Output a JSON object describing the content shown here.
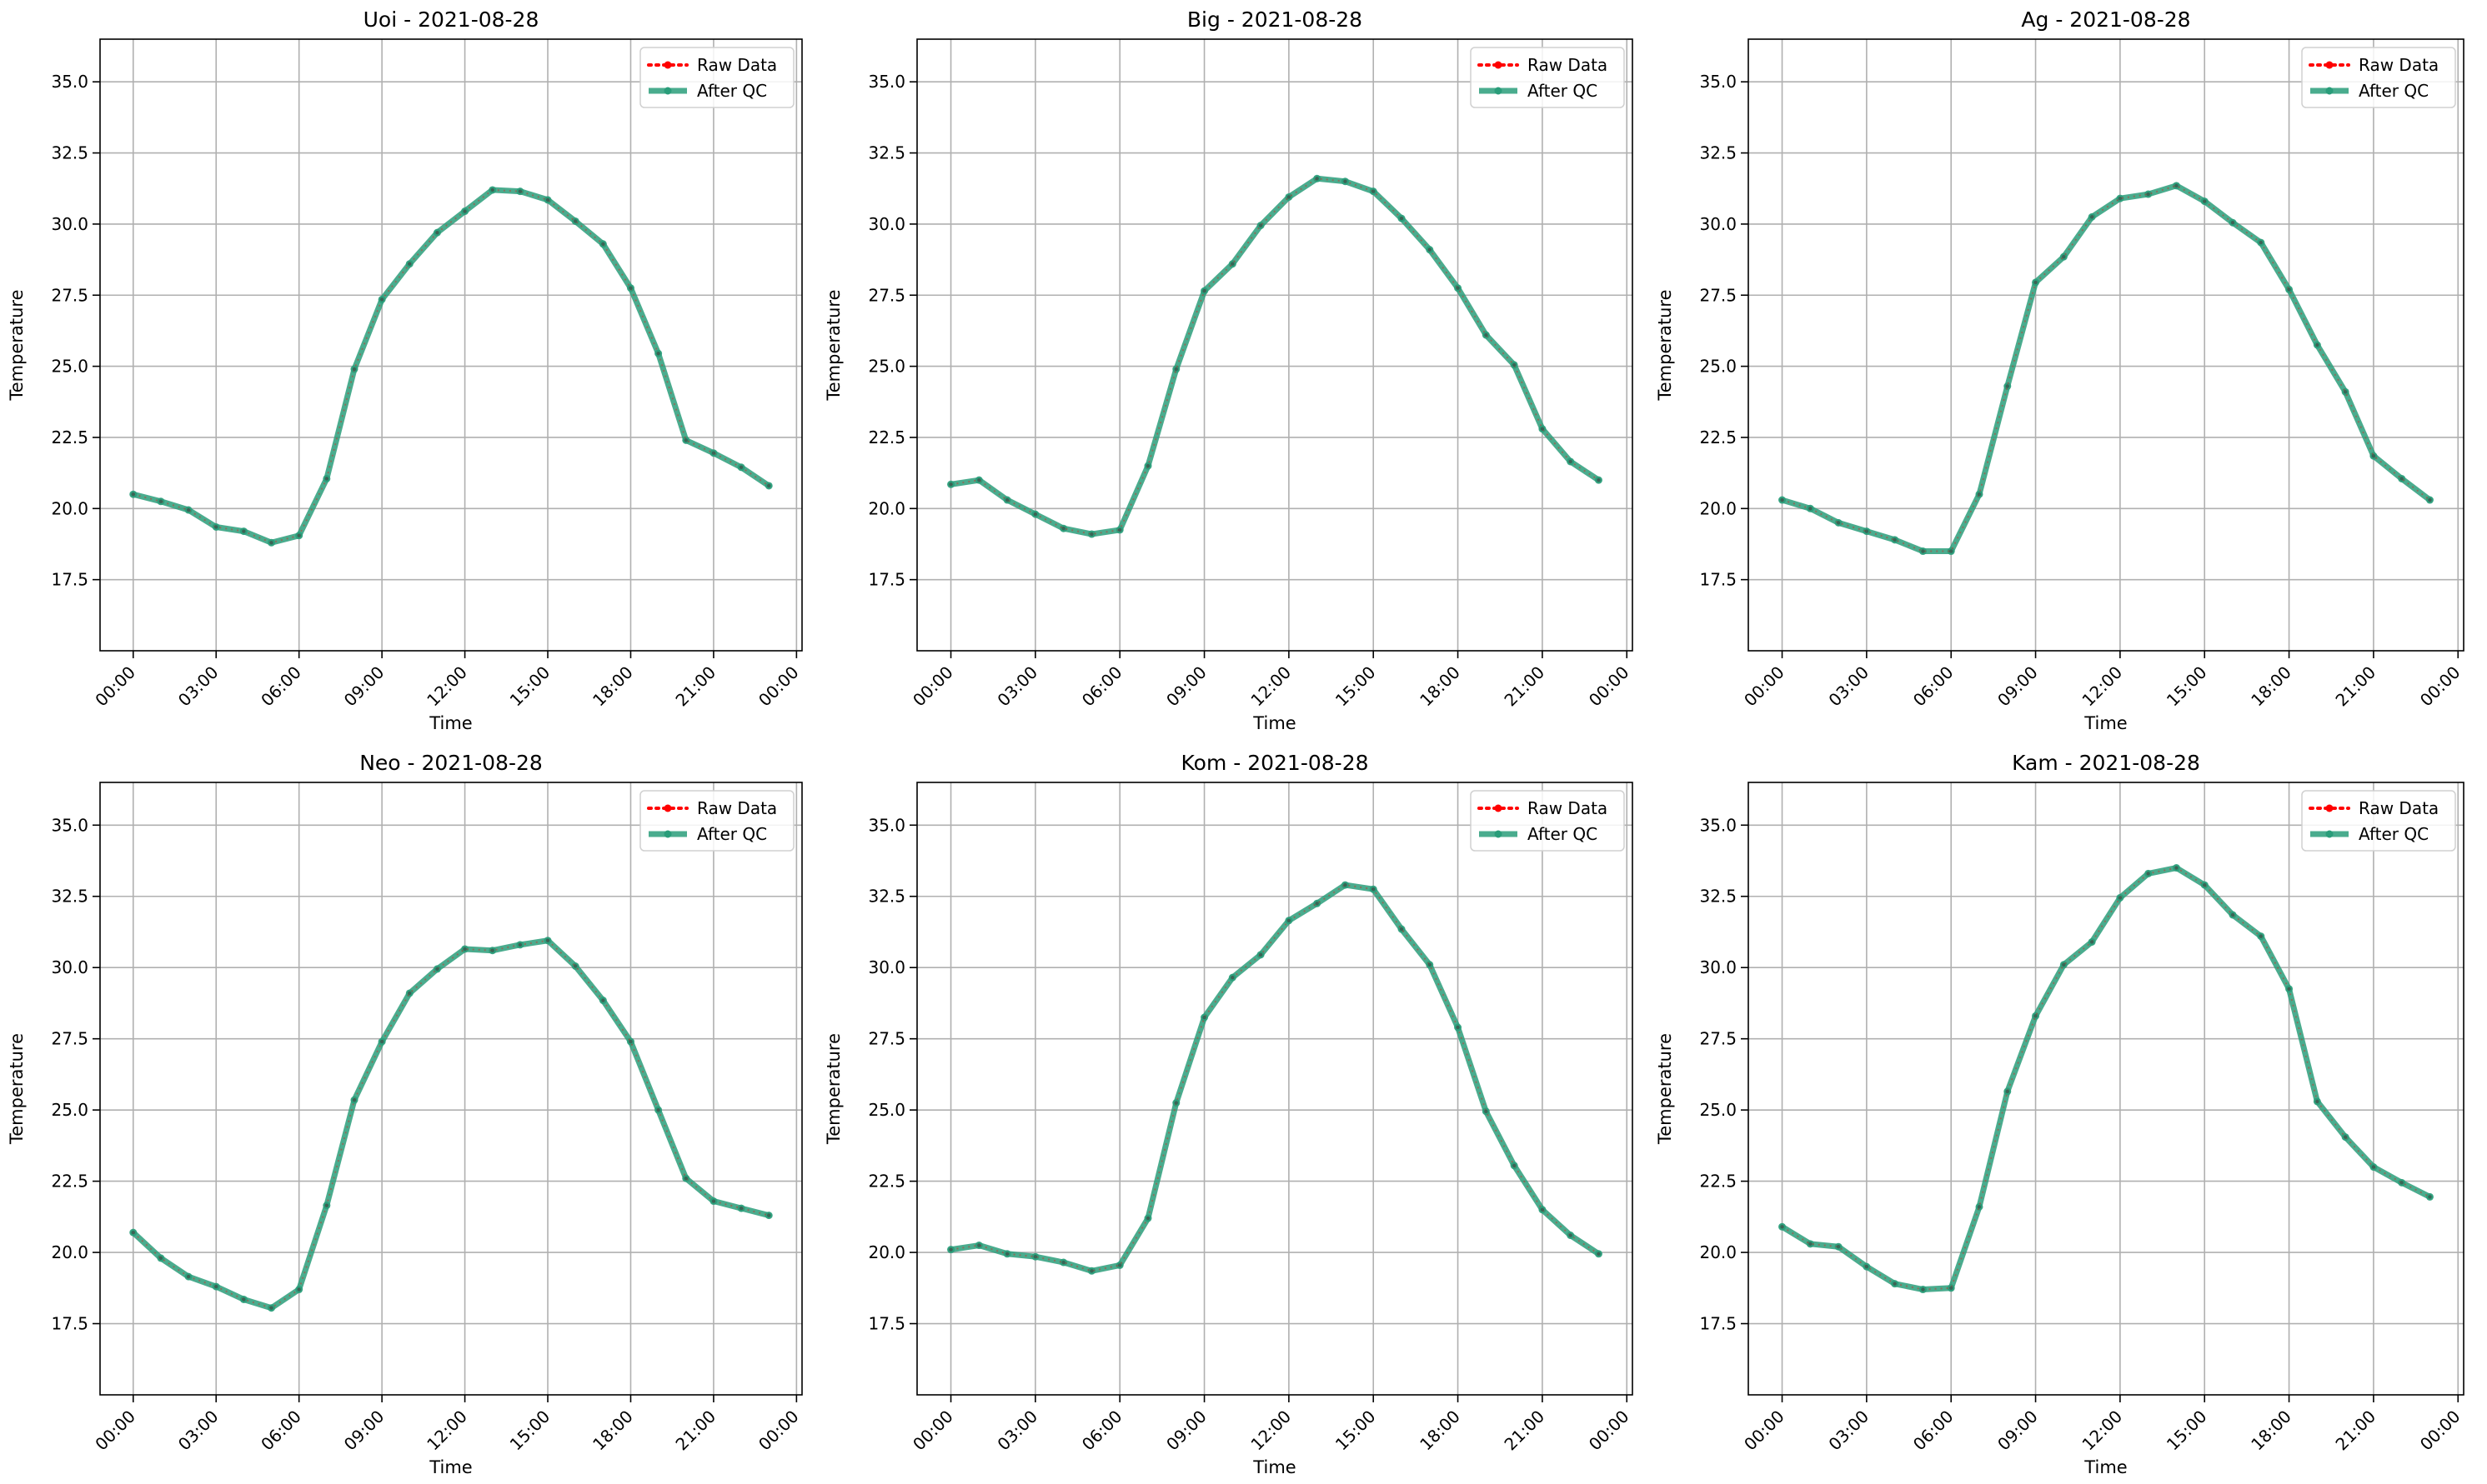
{
  "legend": {
    "raw_label": "Raw Data",
    "qc_label": "After QC"
  },
  "colors": {
    "raw": "#ff0000",
    "qc": "#2a9d7a",
    "grid": "#b0b0b0",
    "axes": "#000000"
  },
  "chart_data": [
    {
      "type": "line",
      "title": "Uoi - 2021-08-28",
      "xlabel": "Time",
      "ylabel": "Temperature",
      "xlim": [
        "2021-08-27 22:48",
        "2021-08-29 00:12"
      ],
      "ylim": [
        15.0,
        36.5
      ],
      "grid": true,
      "legend_position": "top-right",
      "x_ticks": [
        "00:00",
        "03:00",
        "06:00",
        "09:00",
        "12:00",
        "15:00",
        "18:00",
        "21:00",
        "00:00"
      ],
      "y_ticks": [
        "17.5",
        "20.0",
        "22.5",
        "25.0",
        "27.5",
        "30.0",
        "32.5",
        "35.0"
      ],
      "x": [
        "00:00",
        "01:00",
        "02:00",
        "03:00",
        "04:00",
        "05:00",
        "06:00",
        "07:00",
        "08:00",
        "09:00",
        "10:00",
        "11:00",
        "12:00",
        "13:00",
        "14:00",
        "15:00",
        "16:00",
        "17:00",
        "18:00",
        "19:00",
        "20:00",
        "21:00",
        "22:00",
        "23:00"
      ],
      "series": [
        {
          "name": "Raw Data",
          "values": [
            20.5,
            20.25,
            19.95,
            19.35,
            19.2,
            18.8,
            19.05,
            21.05,
            24.9,
            27.35,
            28.6,
            29.7,
            30.45,
            31.2,
            31.15,
            30.85,
            30.1,
            29.3,
            27.75,
            25.45,
            22.4,
            21.95,
            21.45,
            20.8
          ]
        },
        {
          "name": "After QC",
          "values": [
            20.5,
            20.25,
            19.95,
            19.35,
            19.2,
            18.8,
            19.05,
            21.05,
            24.9,
            27.35,
            28.6,
            29.7,
            30.45,
            31.2,
            31.15,
            30.85,
            30.1,
            29.3,
            27.75,
            25.45,
            22.4,
            21.95,
            21.45,
            20.8
          ]
        }
      ]
    },
    {
      "type": "line",
      "title": "Big - 2021-08-28",
      "xlabel": "Time",
      "ylabel": "Temperature",
      "xlim": [
        "2021-08-27 22:48",
        "2021-08-29 00:12"
      ],
      "ylim": [
        15.0,
        36.5
      ],
      "grid": true,
      "legend_position": "top-right",
      "x_ticks": [
        "00:00",
        "03:00",
        "06:00",
        "09:00",
        "12:00",
        "15:00",
        "18:00",
        "21:00",
        "00:00"
      ],
      "y_ticks": [
        "17.5",
        "20.0",
        "22.5",
        "25.0",
        "27.5",
        "30.0",
        "32.5",
        "35.0"
      ],
      "x": [
        "00:00",
        "01:00",
        "02:00",
        "03:00",
        "04:00",
        "05:00",
        "06:00",
        "07:00",
        "08:00",
        "09:00",
        "10:00",
        "11:00",
        "12:00",
        "13:00",
        "14:00",
        "15:00",
        "16:00",
        "17:00",
        "18:00",
        "19:00",
        "20:00",
        "21:00",
        "22:00",
        "23:00"
      ],
      "series": [
        {
          "name": "Raw Data",
          "values": [
            20.85,
            21.0,
            20.3,
            19.8,
            19.3,
            19.1,
            19.25,
            21.5,
            24.9,
            27.65,
            28.6,
            29.95,
            30.95,
            31.6,
            31.5,
            31.15,
            30.2,
            29.1,
            27.75,
            26.1,
            25.05,
            22.8,
            21.65,
            21.0
          ]
        },
        {
          "name": "After QC",
          "values": [
            20.85,
            21.0,
            20.3,
            19.8,
            19.3,
            19.1,
            19.25,
            21.5,
            24.9,
            27.65,
            28.6,
            29.95,
            30.95,
            31.6,
            31.5,
            31.15,
            30.2,
            29.1,
            27.75,
            26.1,
            25.05,
            22.8,
            21.65,
            21.0
          ]
        }
      ]
    },
    {
      "type": "line",
      "title": "Ag - 2021-08-28",
      "xlabel": "Time",
      "ylabel": "Temperature",
      "xlim": [
        "2021-08-27 22:48",
        "2021-08-29 00:12"
      ],
      "ylim": [
        15.0,
        36.5
      ],
      "grid": true,
      "legend_position": "top-right",
      "x_ticks": [
        "00:00",
        "03:00",
        "06:00",
        "09:00",
        "12:00",
        "15:00",
        "18:00",
        "21:00",
        "00:00"
      ],
      "y_ticks": [
        "17.5",
        "20.0",
        "22.5",
        "25.0",
        "27.5",
        "30.0",
        "32.5",
        "35.0"
      ],
      "x": [
        "00:00",
        "01:00",
        "02:00",
        "03:00",
        "04:00",
        "05:00",
        "06:00",
        "07:00",
        "08:00",
        "09:00",
        "10:00",
        "11:00",
        "12:00",
        "13:00",
        "14:00",
        "15:00",
        "16:00",
        "17:00",
        "18:00",
        "19:00",
        "20:00",
        "21:00",
        "22:00",
        "23:00"
      ],
      "series": [
        {
          "name": "Raw Data",
          "values": [
            20.3,
            20.0,
            19.5,
            19.2,
            18.9,
            18.5,
            18.5,
            20.5,
            24.3,
            27.95,
            28.85,
            30.25,
            30.9,
            31.05,
            31.35,
            30.8,
            30.05,
            29.35,
            27.7,
            25.75,
            24.1,
            21.85,
            21.05,
            20.3
          ]
        },
        {
          "name": "After QC",
          "values": [
            20.3,
            20.0,
            19.5,
            19.2,
            18.9,
            18.5,
            18.5,
            20.5,
            24.3,
            27.95,
            28.85,
            30.25,
            30.9,
            31.05,
            31.35,
            30.8,
            30.05,
            29.35,
            27.7,
            25.75,
            24.1,
            21.85,
            21.05,
            20.3
          ]
        }
      ]
    },
    {
      "type": "line",
      "title": "Neo - 2021-08-28",
      "xlabel": "Time",
      "ylabel": "Temperature",
      "xlim": [
        "2021-08-27 22:48",
        "2021-08-29 00:12"
      ],
      "ylim": [
        15.0,
        36.5
      ],
      "grid": true,
      "legend_position": "top-right",
      "x_ticks": [
        "00:00",
        "03:00",
        "06:00",
        "09:00",
        "12:00",
        "15:00",
        "18:00",
        "21:00",
        "00:00"
      ],
      "y_ticks": [
        "17.5",
        "20.0",
        "22.5",
        "25.0",
        "27.5",
        "30.0",
        "32.5",
        "35.0"
      ],
      "x": [
        "00:00",
        "01:00",
        "02:00",
        "03:00",
        "04:00",
        "05:00",
        "06:00",
        "07:00",
        "08:00",
        "09:00",
        "10:00",
        "11:00",
        "12:00",
        "13:00",
        "14:00",
        "15:00",
        "16:00",
        "17:00",
        "18:00",
        "19:00",
        "20:00",
        "21:00",
        "22:00",
        "23:00"
      ],
      "series": [
        {
          "name": "Raw Data",
          "values": [
            20.7,
            19.8,
            19.15,
            18.8,
            18.35,
            18.05,
            18.7,
            21.65,
            25.35,
            27.4,
            29.1,
            29.95,
            30.65,
            30.6,
            30.8,
            30.95,
            30.05,
            28.85,
            27.4,
            25.0,
            22.6,
            21.8,
            21.55,
            21.3
          ]
        },
        {
          "name": "After QC",
          "values": [
            20.7,
            19.8,
            19.15,
            18.8,
            18.35,
            18.05,
            18.7,
            21.65,
            25.35,
            27.4,
            29.1,
            29.95,
            30.65,
            30.6,
            30.8,
            30.95,
            30.05,
            28.85,
            27.4,
            25.0,
            22.6,
            21.8,
            21.55,
            21.3
          ]
        }
      ]
    },
    {
      "type": "line",
      "title": "Kom - 2021-08-28",
      "xlabel": "Time",
      "ylabel": "Temperature",
      "xlim": [
        "2021-08-27 22:48",
        "2021-08-29 00:12"
      ],
      "ylim": [
        15.0,
        36.5
      ],
      "grid": true,
      "legend_position": "top-right",
      "x_ticks": [
        "00:00",
        "03:00",
        "06:00",
        "09:00",
        "12:00",
        "15:00",
        "18:00",
        "21:00",
        "00:00"
      ],
      "y_ticks": [
        "17.5",
        "20.0",
        "22.5",
        "25.0",
        "27.5",
        "30.0",
        "32.5",
        "35.0"
      ],
      "x": [
        "00:00",
        "01:00",
        "02:00",
        "03:00",
        "04:00",
        "05:00",
        "06:00",
        "07:00",
        "08:00",
        "09:00",
        "10:00",
        "11:00",
        "12:00",
        "13:00",
        "14:00",
        "15:00",
        "16:00",
        "17:00",
        "18:00",
        "19:00",
        "20:00",
        "21:00",
        "22:00",
        "23:00"
      ],
      "series": [
        {
          "name": "Raw Data",
          "values": [
            20.1,
            20.25,
            19.95,
            19.85,
            19.65,
            19.35,
            19.55,
            21.2,
            25.25,
            28.25,
            29.65,
            30.45,
            31.65,
            32.25,
            32.9,
            32.75,
            31.35,
            30.1,
            27.9,
            24.95,
            23.05,
            21.5,
            20.6,
            19.95
          ]
        },
        {
          "name": "After QC",
          "values": [
            20.1,
            20.25,
            19.95,
            19.85,
            19.65,
            19.35,
            19.55,
            21.2,
            25.25,
            28.25,
            29.65,
            30.45,
            31.65,
            32.25,
            32.9,
            32.75,
            31.35,
            30.1,
            27.9,
            24.95,
            23.05,
            21.5,
            20.6,
            19.95
          ]
        }
      ]
    },
    {
      "type": "line",
      "title": "Kam - 2021-08-28",
      "xlabel": "Time",
      "ylabel": "Temperature",
      "xlim": [
        "2021-08-27 22:48",
        "2021-08-29 00:12"
      ],
      "ylim": [
        15.0,
        36.5
      ],
      "grid": true,
      "legend_position": "top-right",
      "x_ticks": [
        "00:00",
        "03:00",
        "06:00",
        "09:00",
        "12:00",
        "15:00",
        "18:00",
        "21:00",
        "00:00"
      ],
      "y_ticks": [
        "17.5",
        "20.0",
        "22.5",
        "25.0",
        "27.5",
        "30.0",
        "32.5",
        "35.0"
      ],
      "x": [
        "00:00",
        "01:00",
        "02:00",
        "03:00",
        "04:00",
        "05:00",
        "06:00",
        "07:00",
        "08:00",
        "09:00",
        "10:00",
        "11:00",
        "12:00",
        "13:00",
        "14:00",
        "15:00",
        "16:00",
        "17:00",
        "18:00",
        "19:00",
        "20:00",
        "21:00",
        "22:00",
        "23:00"
      ],
      "series": [
        {
          "name": "Raw Data",
          "values": [
            20.9,
            20.3,
            20.2,
            19.5,
            18.9,
            18.7,
            18.75,
            21.6,
            25.65,
            28.3,
            30.1,
            30.9,
            32.45,
            33.3,
            33.5,
            32.9,
            31.85,
            31.1,
            29.25,
            25.3,
            24.05,
            23.0,
            22.45,
            21.95
          ]
        },
        {
          "name": "After QC",
          "values": [
            20.9,
            20.3,
            20.2,
            19.5,
            18.9,
            18.7,
            18.75,
            21.6,
            25.65,
            28.3,
            30.1,
            30.9,
            32.45,
            33.3,
            33.5,
            32.9,
            31.85,
            31.1,
            29.25,
            25.3,
            24.05,
            23.0,
            22.45,
            21.95
          ]
        }
      ]
    }
  ]
}
